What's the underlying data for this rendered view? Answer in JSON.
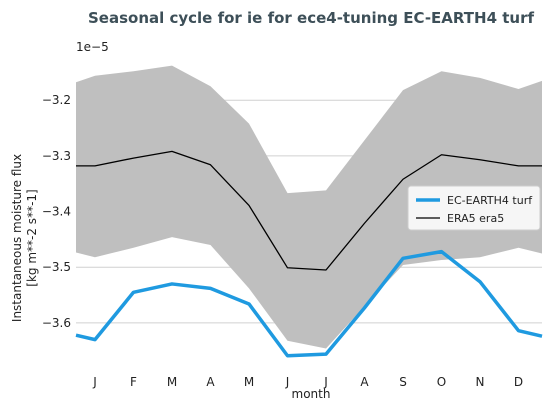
{
  "chart_data": {
    "type": "line",
    "title": "Seasonal cycle for ie for ece4-tuning EC-EARTH4 turf",
    "offset_label": "1e−5",
    "xlabel": "month",
    "ylabel_line1": "Instantaneous moisture flux",
    "ylabel_line2": "[kg m**-2 s**-1]",
    "categories": [
      "J",
      "F",
      "M",
      "A",
      "M",
      "J",
      "J",
      "A",
      "S",
      "O",
      "N",
      "D"
    ],
    "y_ticks": [
      -3.6,
      -3.5,
      -3.4,
      -3.3,
      -3.2
    ],
    "y_tick_labels": [
      "−3.6",
      "−3.5",
      "−3.4",
      "−3.3",
      "−3.2"
    ],
    "ylim": [
      -3.672,
      -3.135
    ],
    "grid": true,
    "legend_position": "center-right",
    "series": [
      {
        "name": "EC-EARTH4 turf",
        "color": "#1f9ae0",
        "values": [
          -3.63,
          -3.545,
          -3.53,
          -3.538,
          -3.566,
          -3.659,
          -3.656,
          -3.573,
          -3.484,
          -3.472,
          -3.526,
          -3.614
        ]
      },
      {
        "name": "ERA5 era5",
        "color": "#000000",
        "values": [
          -3.318,
          -3.304,
          -3.292,
          -3.316,
          -3.389,
          -3.501,
          -3.505,
          -3.421,
          -3.342,
          -3.298,
          -3.307,
          -3.318
        ],
        "band_upper": [
          -3.156,
          -3.148,
          -3.138,
          -3.175,
          -3.242,
          -3.367,
          -3.362,
          -3.272,
          -3.182,
          -3.148,
          -3.16,
          -3.18
        ],
        "band_lower": [
          -3.482,
          -3.465,
          -3.446,
          -3.46,
          -3.538,
          -3.632,
          -3.646,
          -3.57,
          -3.496,
          -3.487,
          -3.482,
          -3.465
        ],
        "band_color": "#bfbfbf"
      }
    ]
  }
}
